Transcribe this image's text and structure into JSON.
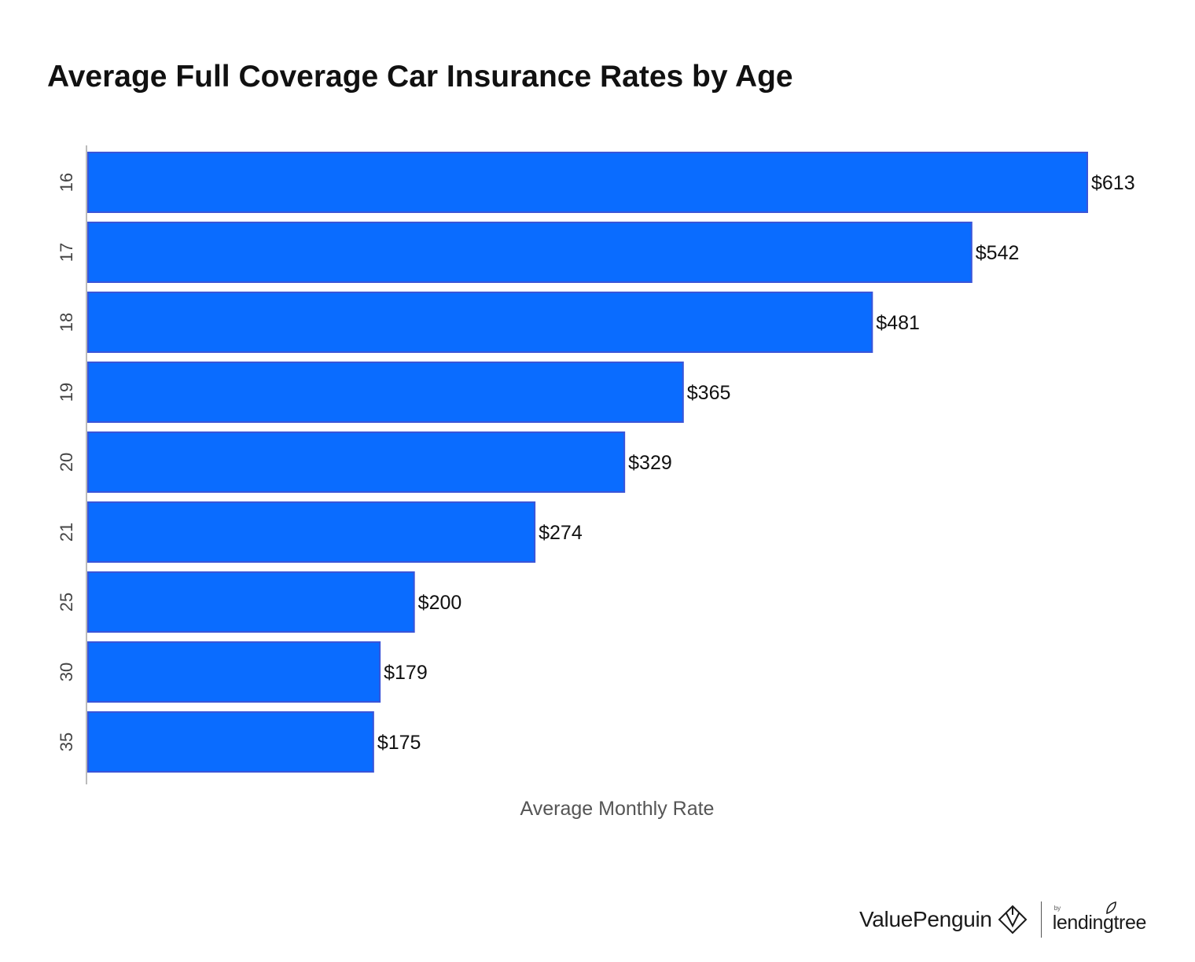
{
  "header": {
    "title": "Average Full Coverage Car Insurance Rates by Age"
  },
  "chart_data": {
    "type": "bar",
    "orientation": "horizontal",
    "title": "Average Full Coverage Car Insurance Rates by Age",
    "xlabel": "Average Monthly Rate",
    "ylabel": "",
    "categories": [
      "16",
      "17",
      "18",
      "19",
      "20",
      "21",
      "25",
      "30",
      "35"
    ],
    "values": [
      613,
      542,
      481,
      365,
      329,
      274,
      200,
      179,
      175
    ],
    "data_labels": [
      "$613",
      "$542",
      "$481",
      "$365",
      "$329",
      "$274",
      "$200",
      "$179",
      "$175"
    ],
    "xlim": [
      0,
      613
    ],
    "grid": false,
    "legend": "none",
    "bar_color": "#0a6cff",
    "bar_edge_color": "#3a55d8",
    "axis_color": "#bbbbbb",
    "tick_label_color": "#444444",
    "axis_label_color": "#555555"
  },
  "footer": {
    "brand": "ValuePenguin",
    "brand_icon": "valuepenguin-diamond-icon",
    "partner_prefix": "by",
    "partner": "lendingtree",
    "partner_icon": "leaf-icon"
  }
}
